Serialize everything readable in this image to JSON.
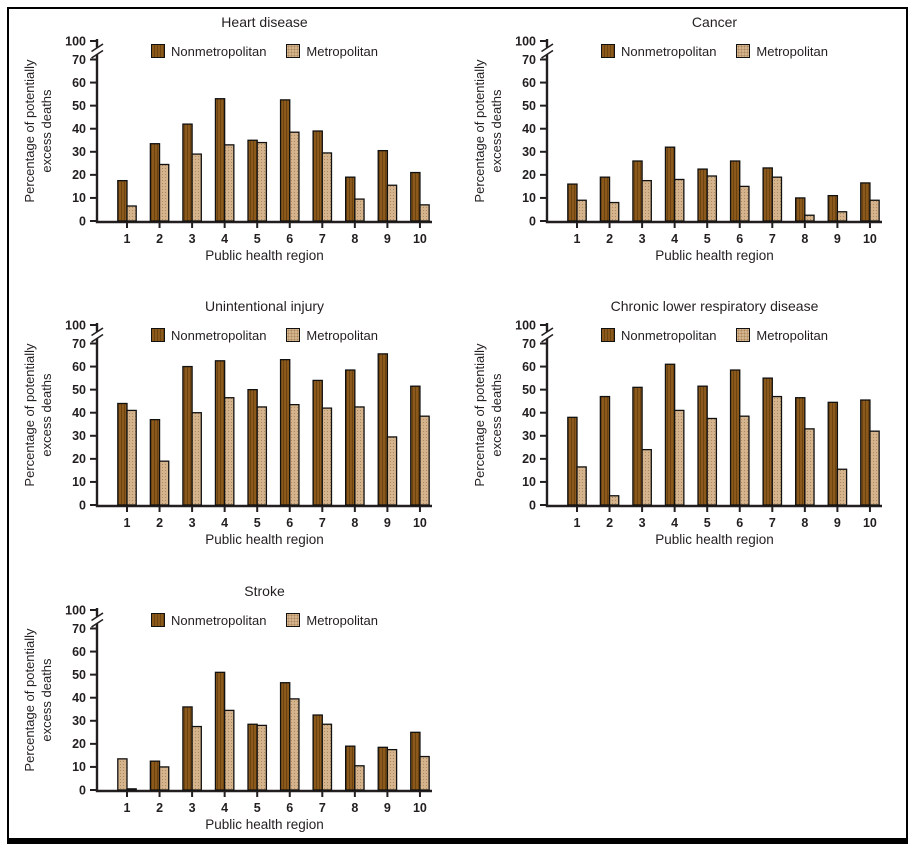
{
  "page": {
    "background": "#ffffff",
    "frame_border_color": "#000000",
    "text_color": "#231f20"
  },
  "axes": {
    "ylabel_line1": "Percentage of potentially",
    "ylabel_line2": "excess deaths",
    "xlabel": "Public health region",
    "yticks": [
      0,
      10,
      20,
      30,
      40,
      50,
      60,
      70,
      100
    ],
    "axis_break_between": [
      70,
      100
    ]
  },
  "colors": {
    "nonmetropolitan_fill": "#8b591b",
    "nonmetropolitan_hatch": "#6d4410",
    "metropolitan_fill": "#d5b48d",
    "metropolitan_hatch": "#ab8a60",
    "bar_outline": "#111111",
    "axis": "#231f20"
  },
  "chart_data": [
    {
      "type": "bar",
      "title": "Heart disease",
      "xlabel": "Public health region",
      "ylabel": "Percentage of potentially excess deaths",
      "categories": [
        "1",
        "2",
        "3",
        "4",
        "5",
        "6",
        "7",
        "8",
        "9",
        "10"
      ],
      "series": [
        {
          "name": "Nonmetropolitan",
          "color": "#8b591b",
          "hatch": "vertical-stripes",
          "hatch_color": "#6d4410",
          "values": [
            17.5,
            33.5,
            42,
            53,
            35,
            52.5,
            39,
            19,
            30.5,
            21
          ]
        },
        {
          "name": "Metropolitan",
          "color": "#d5b48d",
          "hatch": "dots",
          "hatch_color": "#ab8a60",
          "values": [
            6.5,
            24.5,
            29,
            33,
            34,
            38.5,
            29.5,
            9.5,
            15.5,
            7
          ]
        }
      ],
      "ylim": [
        0,
        100
      ],
      "yticks": [
        0,
        10,
        20,
        30,
        40,
        50,
        60,
        70,
        100
      ],
      "axis_break_between": [
        70,
        100
      ],
      "legend_position": "top-center",
      "grid": false,
      "reversed_pair_indices": []
    },
    {
      "type": "bar",
      "title": "Cancer",
      "xlabel": "Public health region",
      "ylabel": "Percentage of potentially excess deaths",
      "categories": [
        "1",
        "2",
        "3",
        "4",
        "5",
        "6",
        "7",
        "8",
        "9",
        "10"
      ],
      "series": [
        {
          "name": "Nonmetropolitan",
          "color": "#8b591b",
          "hatch": "vertical-stripes",
          "hatch_color": "#6d4410",
          "values": [
            16,
            19,
            26,
            32,
            22.5,
            26,
            23,
            10,
            11,
            16.5
          ]
        },
        {
          "name": "Metropolitan",
          "color": "#d5b48d",
          "hatch": "dots",
          "hatch_color": "#ab8a60",
          "values": [
            9,
            8,
            17.5,
            18,
            19.5,
            15,
            19,
            2.5,
            4,
            9
          ]
        }
      ],
      "ylim": [
        0,
        100
      ],
      "yticks": [
        0,
        10,
        20,
        30,
        40,
        50,
        60,
        70,
        100
      ],
      "axis_break_between": [
        70,
        100
      ],
      "legend_position": "top-center",
      "grid": false,
      "reversed_pair_indices": []
    },
    {
      "type": "bar",
      "title": "Unintentional injury",
      "xlabel": "Public health region",
      "ylabel": "Percentage of potentially excess deaths",
      "categories": [
        "1",
        "2",
        "3",
        "4",
        "5",
        "6",
        "7",
        "8",
        "9",
        "10"
      ],
      "series": [
        {
          "name": "Nonmetropolitan",
          "color": "#8b591b",
          "hatch": "vertical-stripes",
          "hatch_color": "#6d4410",
          "values": [
            44,
            37,
            60,
            62.5,
            50,
            63,
            54,
            58.5,
            65.5,
            51.5
          ]
        },
        {
          "name": "Metropolitan",
          "color": "#d5b48d",
          "hatch": "dots",
          "hatch_color": "#ab8a60",
          "values": [
            41,
            19,
            40,
            46.5,
            42.5,
            43.5,
            42,
            42.5,
            29.5,
            38.5
          ]
        }
      ],
      "ylim": [
        0,
        100
      ],
      "yticks": [
        0,
        10,
        20,
        30,
        40,
        50,
        60,
        70,
        100
      ],
      "axis_break_between": [
        70,
        100
      ],
      "legend_position": "top-center",
      "grid": false,
      "reversed_pair_indices": []
    },
    {
      "type": "bar",
      "title": "Chronic lower respiratory disease",
      "xlabel": "Public health region",
      "ylabel": "Percentage of potentially excess deaths",
      "categories": [
        "1",
        "2",
        "3",
        "4",
        "5",
        "6",
        "7",
        "8",
        "9",
        "10"
      ],
      "series": [
        {
          "name": "Nonmetropolitan",
          "color": "#8b591b",
          "hatch": "vertical-stripes",
          "hatch_color": "#6d4410",
          "values": [
            38,
            47,
            51,
            61,
            51.5,
            58.5,
            55,
            46.5,
            44.5,
            45.5
          ]
        },
        {
          "name": "Metropolitan",
          "color": "#d5b48d",
          "hatch": "dots",
          "hatch_color": "#ab8a60",
          "values": [
            16.5,
            4,
            24,
            41,
            37.5,
            38.5,
            47,
            33,
            15.5,
            32
          ]
        }
      ],
      "ylim": [
        0,
        100
      ],
      "yticks": [
        0,
        10,
        20,
        30,
        40,
        50,
        60,
        70,
        100
      ],
      "axis_break_between": [
        70,
        100
      ],
      "legend_position": "top-center",
      "grid": false,
      "reversed_pair_indices": []
    },
    {
      "type": "bar",
      "title": "Stroke",
      "xlabel": "Public health region",
      "ylabel": "Percentage of potentially excess deaths",
      "categories": [
        "1",
        "2",
        "3",
        "4",
        "5",
        "6",
        "7",
        "8",
        "9",
        "10"
      ],
      "series": [
        {
          "name": "Nonmetropolitan",
          "color": "#8b591b",
          "hatch": "vertical-stripes",
          "hatch_color": "#6d4410",
          "values": [
            0.5,
            12.5,
            36,
            51,
            28.5,
            46.5,
            32.5,
            19,
            18.5,
            25
          ]
        },
        {
          "name": "Metropolitan",
          "color": "#d5b48d",
          "hatch": "dots",
          "hatch_color": "#ab8a60",
          "values": [
            13.5,
            10,
            27.5,
            34.5,
            28,
            39.5,
            28.5,
            10.5,
            17.5,
            14.5
          ]
        }
      ],
      "ylim": [
        0,
        100
      ],
      "yticks": [
        0,
        10,
        20,
        30,
        40,
        50,
        60,
        70,
        100
      ],
      "axis_break_between": [
        70,
        100
      ],
      "legend_position": "top-center",
      "grid": false,
      "reversed_pair_indices": [
        0
      ]
    }
  ]
}
